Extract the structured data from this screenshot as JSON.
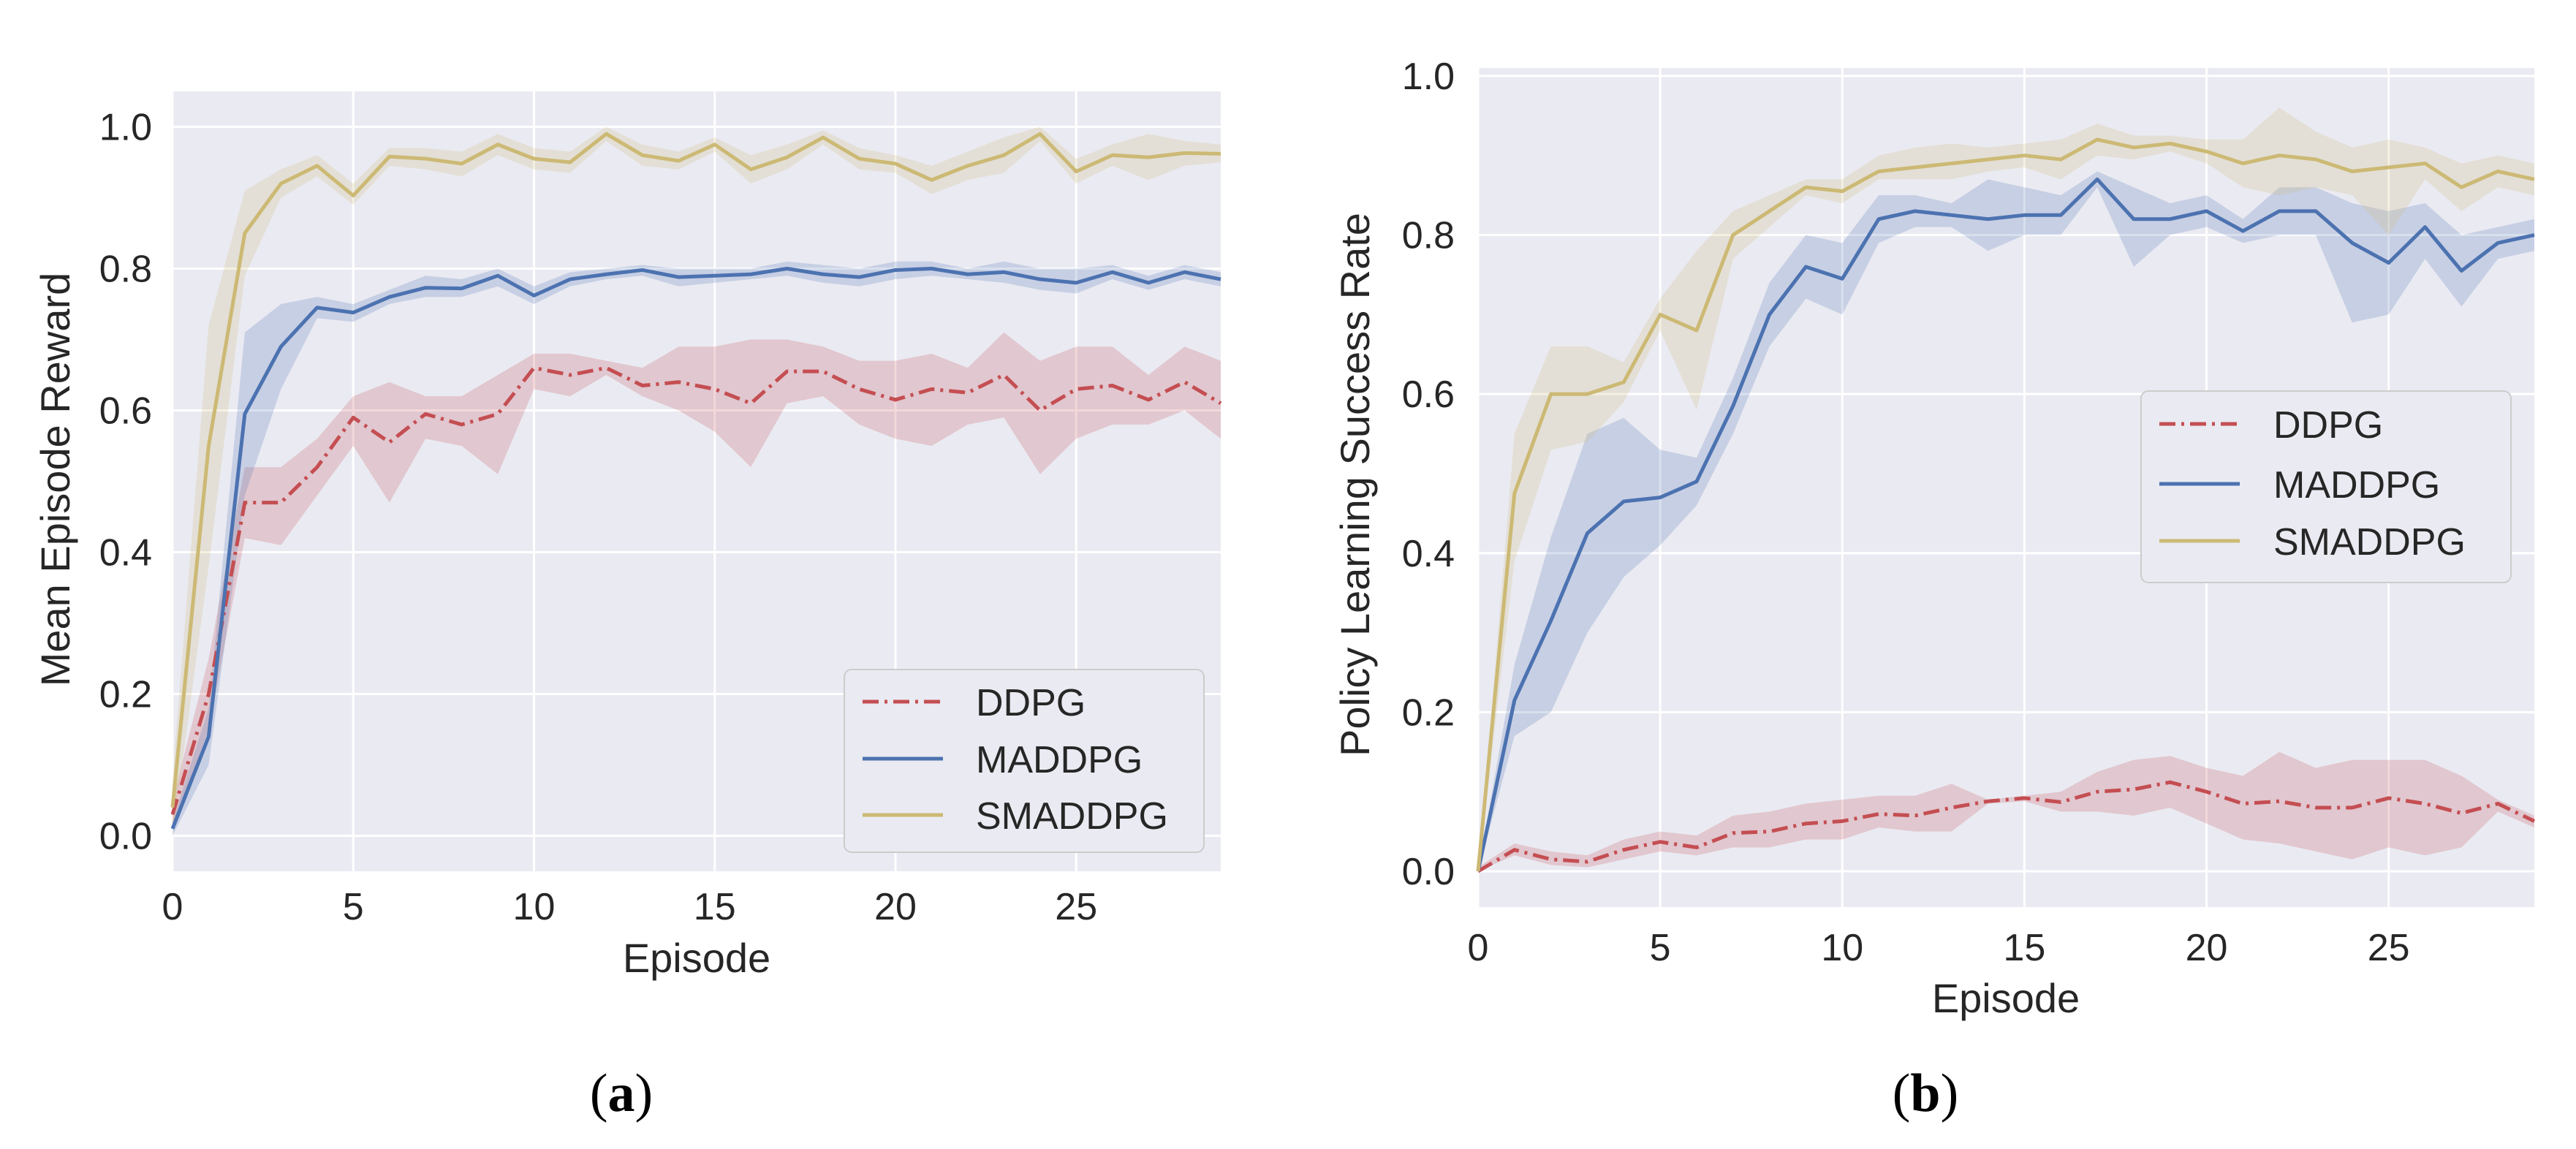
{
  "colors": {
    "background": "#ffffff",
    "plot_bg": "#eaeaf2",
    "grid": "#ffffff",
    "ddpg": "#c44e52",
    "maddpg": "#4c72b0",
    "smaddpg": "#ccb974"
  },
  "chart_data": [
    {
      "type": "line",
      "panel_label": "a",
      "title": "",
      "xlabel": "Episode",
      "ylabel": "Mean Episode Reward",
      "xlim": [
        0,
        29
      ],
      "ylim": [
        -0.05,
        1.05
      ],
      "xticks": [
        0,
        5,
        10,
        15,
        20,
        25
      ],
      "yticks": [
        0.0,
        0.2,
        0.4,
        0.6,
        0.8,
        1.0
      ],
      "ytick_labels": [
        "0.0",
        "0.2",
        "0.4",
        "0.6",
        "0.8",
        "1.0"
      ],
      "xtick_labels": [
        "0",
        "5",
        "10",
        "15",
        "20",
        "25"
      ],
      "legend": {
        "position": "lower-right",
        "entries": [
          "DDPG",
          "MADDPG",
          "SMADDPG"
        ]
      },
      "x": [
        0,
        1,
        2,
        3,
        4,
        5,
        6,
        7,
        8,
        9,
        10,
        11,
        12,
        13,
        14,
        15,
        16,
        17,
        18,
        19,
        20,
        21,
        22,
        23,
        24,
        25,
        26,
        27,
        28,
        29
      ],
      "series": [
        {
          "name": "DDPG",
          "style": "dashdot",
          "color": "#c44e52",
          "values": [
            0.03,
            0.2,
            0.47,
            0.47,
            0.52,
            0.59,
            0.555,
            0.595,
            0.58,
            0.595,
            0.66,
            0.65,
            0.66,
            0.635,
            0.64,
            0.63,
            0.61,
            0.655,
            0.655,
            0.63,
            0.615,
            0.63,
            0.625,
            0.65,
            0.6,
            0.63,
            0.635,
            0.615,
            0.64,
            0.61
          ],
          "upper": [
            0.05,
            0.25,
            0.52,
            0.52,
            0.56,
            0.62,
            0.64,
            0.62,
            0.62,
            0.65,
            0.68,
            0.68,
            0.67,
            0.66,
            0.69,
            0.69,
            0.7,
            0.7,
            0.69,
            0.67,
            0.67,
            0.68,
            0.66,
            0.71,
            0.67,
            0.69,
            0.69,
            0.65,
            0.69,
            0.67
          ],
          "lower": [
            0.01,
            0.15,
            0.42,
            0.41,
            0.48,
            0.55,
            0.47,
            0.56,
            0.55,
            0.51,
            0.63,
            0.62,
            0.65,
            0.62,
            0.6,
            0.57,
            0.52,
            0.61,
            0.62,
            0.58,
            0.56,
            0.55,
            0.58,
            0.59,
            0.51,
            0.56,
            0.58,
            0.58,
            0.6,
            0.56
          ]
        },
        {
          "name": "MADDPG",
          "style": "solid",
          "color": "#4c72b0",
          "values": [
            0.01,
            0.14,
            0.595,
            0.69,
            0.745,
            0.738,
            0.76,
            0.773,
            0.772,
            0.79,
            0.762,
            0.785,
            0.792,
            0.798,
            0.788,
            0.79,
            0.792,
            0.8,
            0.792,
            0.788,
            0.798,
            0.8,
            0.792,
            0.795,
            0.785,
            0.78,
            0.795,
            0.78,
            0.795,
            0.785
          ],
          "upper": [
            0.02,
            0.18,
            0.71,
            0.75,
            0.76,
            0.75,
            0.77,
            0.79,
            0.785,
            0.8,
            0.775,
            0.795,
            0.8,
            0.805,
            0.8,
            0.8,
            0.8,
            0.81,
            0.805,
            0.8,
            0.81,
            0.81,
            0.8,
            0.81,
            0.8,
            0.8,
            0.805,
            0.79,
            0.805,
            0.795
          ],
          "lower": [
            0.0,
            0.1,
            0.48,
            0.63,
            0.73,
            0.725,
            0.75,
            0.76,
            0.76,
            0.775,
            0.75,
            0.775,
            0.785,
            0.79,
            0.775,
            0.78,
            0.785,
            0.79,
            0.78,
            0.775,
            0.785,
            0.79,
            0.785,
            0.78,
            0.77,
            0.765,
            0.785,
            0.77,
            0.785,
            0.775
          ]
        },
        {
          "name": "SMADDPG",
          "style": "solid",
          "color": "#ccb974",
          "values": [
            0.04,
            0.55,
            0.85,
            0.92,
            0.945,
            0.903,
            0.958,
            0.955,
            0.948,
            0.975,
            0.955,
            0.95,
            0.99,
            0.96,
            0.952,
            0.975,
            0.94,
            0.957,
            0.985,
            0.955,
            0.948,
            0.925,
            0.945,
            0.96,
            0.99,
            0.937,
            0.96,
            0.957,
            0.963,
            0.962
          ],
          "upper": [
            0.08,
            0.72,
            0.91,
            0.94,
            0.96,
            0.92,
            0.97,
            0.97,
            0.965,
            0.99,
            0.97,
            0.965,
            1.0,
            0.975,
            0.965,
            0.985,
            0.96,
            0.975,
            0.995,
            0.97,
            0.96,
            0.945,
            0.965,
            0.985,
            1.0,
            0.955,
            0.975,
            0.99,
            0.98,
            0.975
          ],
          "lower": [
            0.0,
            0.38,
            0.79,
            0.9,
            0.93,
            0.89,
            0.945,
            0.94,
            0.93,
            0.96,
            0.94,
            0.935,
            0.98,
            0.945,
            0.94,
            0.965,
            0.92,
            0.94,
            0.975,
            0.94,
            0.935,
            0.905,
            0.925,
            0.935,
            0.98,
            0.92,
            0.945,
            0.925,
            0.945,
            0.95
          ]
        }
      ]
    },
    {
      "type": "line",
      "panel_label": "b",
      "title": "",
      "xlabel": "Episode",
      "ylabel": "Policy Learning Success Rate",
      "xlim": [
        0,
        29
      ],
      "ylim": [
        -0.045,
        1.01
      ],
      "xticks": [
        0,
        5,
        10,
        15,
        20,
        25
      ],
      "yticks": [
        0.0,
        0.2,
        0.4,
        0.6,
        0.8,
        1.0
      ],
      "ytick_labels": [
        "0.0",
        "0.2",
        "0.4",
        "0.6",
        "0.8",
        "1.0"
      ],
      "xtick_labels": [
        "0",
        "5",
        "10",
        "15",
        "20",
        "25"
      ],
      "legend": {
        "position": "center-right",
        "entries": [
          "DDPG",
          "MADDPG",
          "SMADDPG"
        ]
      },
      "x": [
        0,
        1,
        2,
        3,
        4,
        5,
        6,
        7,
        8,
        9,
        10,
        11,
        12,
        13,
        14,
        15,
        16,
        17,
        18,
        19,
        20,
        21,
        22,
        23,
        24,
        25,
        26,
        27,
        28,
        29
      ],
      "series": [
        {
          "name": "DDPG",
          "style": "dashdot",
          "color": "#c44e52",
          "values": [
            0.0,
            0.027,
            0.015,
            0.012,
            0.027,
            0.037,
            0.03,
            0.048,
            0.05,
            0.06,
            0.063,
            0.072,
            0.07,
            0.08,
            0.088,
            0.092,
            0.087,
            0.1,
            0.103,
            0.112,
            0.1,
            0.085,
            0.088,
            0.08,
            0.08,
            0.092,
            0.085,
            0.073,
            0.085,
            0.063
          ],
          "upper": [
            0.005,
            0.035,
            0.025,
            0.02,
            0.04,
            0.05,
            0.045,
            0.07,
            0.075,
            0.085,
            0.09,
            0.095,
            0.095,
            0.11,
            0.09,
            0.095,
            0.1,
            0.125,
            0.14,
            0.145,
            0.13,
            0.12,
            0.15,
            0.13,
            0.14,
            0.14,
            0.14,
            0.12,
            0.09,
            0.07
          ],
          "lower": [
            0.0,
            0.02,
            0.008,
            0.005,
            0.015,
            0.025,
            0.02,
            0.03,
            0.03,
            0.04,
            0.04,
            0.055,
            0.05,
            0.05,
            0.085,
            0.088,
            0.075,
            0.075,
            0.07,
            0.08,
            0.06,
            0.04,
            0.035,
            0.025,
            0.015,
            0.03,
            0.02,
            0.03,
            0.075,
            0.055
          ]
        },
        {
          "name": "MADDPG",
          "style": "solid",
          "color": "#4c72b0",
          "values": [
            0.0,
            0.215,
            0.315,
            0.425,
            0.465,
            0.47,
            0.49,
            0.585,
            0.7,
            0.76,
            0.745,
            0.82,
            0.83,
            0.825,
            0.82,
            0.825,
            0.825,
            0.87,
            0.82,
            0.82,
            0.83,
            0.805,
            0.83,
            0.83,
            0.79,
            0.765,
            0.81,
            0.755,
            0.79,
            0.8
          ],
          "upper": [
            0.0,
            0.26,
            0.42,
            0.55,
            0.57,
            0.53,
            0.52,
            0.62,
            0.74,
            0.8,
            0.79,
            0.85,
            0.85,
            0.84,
            0.87,
            0.86,
            0.85,
            0.88,
            0.86,
            0.84,
            0.85,
            0.82,
            0.86,
            0.86,
            0.84,
            0.83,
            0.84,
            0.8,
            0.81,
            0.82
          ],
          "lower": [
            0.0,
            0.17,
            0.2,
            0.3,
            0.37,
            0.41,
            0.46,
            0.55,
            0.66,
            0.72,
            0.7,
            0.79,
            0.81,
            0.81,
            0.78,
            0.8,
            0.8,
            0.86,
            0.76,
            0.8,
            0.81,
            0.79,
            0.8,
            0.8,
            0.69,
            0.7,
            0.77,
            0.71,
            0.77,
            0.78
          ]
        },
        {
          "name": "SMADDPG",
          "style": "solid",
          "color": "#ccb974",
          "values": [
            0.0,
            0.475,
            0.6,
            0.6,
            0.615,
            0.7,
            0.68,
            0.8,
            0.83,
            0.86,
            0.855,
            0.88,
            0.885,
            0.89,
            0.895,
            0.9,
            0.895,
            0.92,
            0.91,
            0.915,
            0.905,
            0.89,
            0.9,
            0.895,
            0.88,
            0.885,
            0.89,
            0.86,
            0.88,
            0.87
          ],
          "upper": [
            0.0,
            0.55,
            0.66,
            0.66,
            0.64,
            0.72,
            0.78,
            0.83,
            0.85,
            0.87,
            0.87,
            0.9,
            0.91,
            0.915,
            0.91,
            0.915,
            0.92,
            0.94,
            0.925,
            0.925,
            0.92,
            0.92,
            0.96,
            0.93,
            0.91,
            0.92,
            0.91,
            0.89,
            0.9,
            0.89
          ],
          "lower": [
            0.0,
            0.39,
            0.53,
            0.54,
            0.59,
            0.68,
            0.58,
            0.77,
            0.81,
            0.85,
            0.84,
            0.87,
            0.87,
            0.87,
            0.88,
            0.885,
            0.87,
            0.9,
            0.895,
            0.905,
            0.89,
            0.86,
            0.85,
            0.86,
            0.85,
            0.8,
            0.87,
            0.83,
            0.86,
            0.85
          ]
        }
      ]
    }
  ]
}
